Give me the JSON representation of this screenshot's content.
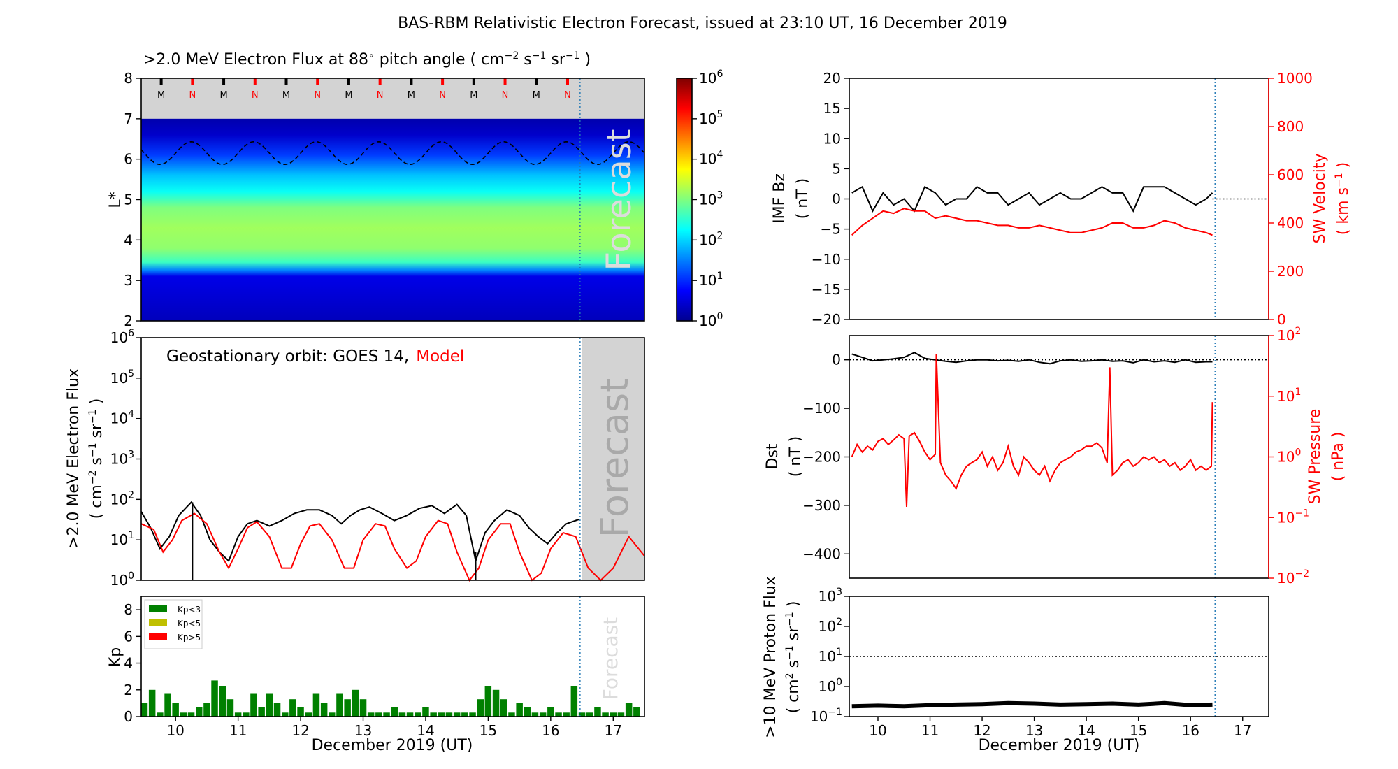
{
  "figure": {
    "title": "BAS-RBM Relativistic Electron Forecast, issued at 23:10 UT, 16 December 2019",
    "forecast_word": "Forecast",
    "colors": {
      "black": "#000000",
      "red": "#ff0000",
      "forecast_line": "#1f77b4",
      "shade": "#d3d3d3",
      "kp_low": "#008000",
      "kp_mid": "#bfbf00",
      "kp_high": "#ff0000"
    }
  },
  "chart_data": [
    {
      "id": "lstar",
      "type": "heatmap",
      "title": ">2.0 MeV Electron Flux at 88 pitch angle ( cm s sr )",
      "title_parts": {
        "main": ">2.0 MeV Electron Flux at 88",
        "deg": "∘",
        "open": " pitch angle ( cm",
        "e1": "−2",
        "s": " s",
        "e2": "−1",
        "sr": " sr",
        "e3": "−1",
        "close": " )"
      },
      "ylabel": "L*",
      "xlim": [
        9.45,
        17.5
      ],
      "ylim": [
        2,
        8
      ],
      "yticks": [
        "2",
        "3",
        "4",
        "5",
        "6",
        "7",
        "8"
      ],
      "forecast_x": 16.47,
      "colorbar": {
        "ticks": [
          "10",
          "10",
          "10",
          "10",
          "10",
          "10",
          "10"
        ],
        "exps": [
          "0",
          "1",
          "2",
          "3",
          "4",
          "5",
          "6"
        ],
        "range": [
          0,
          6
        ]
      },
      "profile": [
        {
          "L": 2.0,
          "logflux": 0.3
        },
        {
          "L": 3.1,
          "logflux": 0.6
        },
        {
          "L": 3.25,
          "logflux": 1.5
        },
        {
          "L": 3.45,
          "logflux": 2.6
        },
        {
          "L": 3.8,
          "logflux": 3.1
        },
        {
          "L": 4.3,
          "logflux": 3.2
        },
        {
          "L": 4.8,
          "logflux": 3.0
        },
        {
          "L": 5.2,
          "logflux": 2.3
        },
        {
          "L": 5.6,
          "logflux": 1.9
        },
        {
          "L": 6.1,
          "logflux": 1.1
        },
        {
          "L": 6.6,
          "logflux": 0.4
        },
        {
          "L": 7.0,
          "logflux": 0.2
        }
      ],
      "outer_boundary": 7.0,
      "dashed_line": {
        "mean": 6.15,
        "amplitude": 0.28,
        "period_days": 1.0,
        "phase": 10.25
      },
      "mlt_markers": [
        {
          "x": 9.77,
          "label": "M",
          "color": "#000000"
        },
        {
          "x": 10.27,
          "label": "N",
          "color": "#ff0000"
        },
        {
          "x": 10.77,
          "label": "M",
          "color": "#000000"
        },
        {
          "x": 11.27,
          "label": "N",
          "color": "#ff0000"
        },
        {
          "x": 11.77,
          "label": "M",
          "color": "#000000"
        },
        {
          "x": 12.27,
          "label": "N",
          "color": "#ff0000"
        },
        {
          "x": 12.77,
          "label": "M",
          "color": "#000000"
        },
        {
          "x": 13.27,
          "label": "N",
          "color": "#ff0000"
        },
        {
          "x": 13.77,
          "label": "M",
          "color": "#000000"
        },
        {
          "x": 14.27,
          "label": "N",
          "color": "#ff0000"
        },
        {
          "x": 14.77,
          "label": "M",
          "color": "#000000"
        },
        {
          "x": 15.27,
          "label": "N",
          "color": "#ff0000"
        },
        {
          "x": 15.77,
          "label": "M",
          "color": "#000000"
        },
        {
          "x": 16.27,
          "label": "N",
          "color": "#ff0000"
        }
      ]
    },
    {
      "id": "geo",
      "type": "line",
      "ylabel": ">2.0 MeV Electron Flux",
      "ylabel2": "( cm  s  sr  )",
      "ylabel2_parts": {
        "open": "( cm",
        "e1": "−2",
        "s": " s",
        "e2": "−1",
        "sr": " sr",
        "e3": "−1",
        "close": " )"
      },
      "annotation": {
        "prefix": "Geostationary orbit:   GOES 14,",
        "model": "Model"
      },
      "xlim": [
        9.45,
        17.5
      ],
      "ylim_log": [
        0,
        6
      ],
      "yticks": [
        "10",
        "10",
        "10",
        "10",
        "10",
        "10",
        "10"
      ],
      "yexps": [
        "0",
        "1",
        "2",
        "3",
        "4",
        "5",
        "6"
      ],
      "forecast_x": 16.47,
      "series": [
        {
          "name": "GOES 14",
          "color": "#000000",
          "x": [
            9.45,
            9.6,
            9.75,
            9.9,
            10.05,
            10.25,
            10.4,
            10.55,
            10.7,
            10.85,
            11.0,
            11.15,
            11.3,
            11.5,
            11.7,
            11.9,
            12.1,
            12.3,
            12.5,
            12.65,
            12.8,
            12.95,
            13.1,
            13.3,
            13.5,
            13.7,
            13.9,
            14.1,
            14.3,
            14.5,
            14.65,
            14.8,
            14.95,
            15.1,
            15.3,
            15.5,
            15.65,
            15.8,
            15.95,
            16.1,
            16.25,
            16.45
          ],
          "y": [
            50,
            20,
            6,
            12,
            40,
            85,
            40,
            10,
            5,
            3,
            12,
            25,
            30,
            22,
            30,
            45,
            55,
            55,
            40,
            25,
            40,
            55,
            65,
            45,
            30,
            40,
            60,
            70,
            45,
            75,
            40,
            3,
            15,
            30,
            55,
            40,
            20,
            12,
            8,
            15,
            25,
            32
          ]
        },
        {
          "name": "Model",
          "color": "#ff0000",
          "x": [
            9.45,
            9.65,
            9.8,
            9.95,
            10.1,
            10.3,
            10.5,
            10.7,
            10.85,
            11.0,
            11.15,
            11.3,
            11.5,
            11.7,
            11.85,
            12.0,
            12.15,
            12.3,
            12.5,
            12.7,
            12.85,
            13.0,
            13.2,
            13.35,
            13.5,
            13.7,
            13.85,
            14.0,
            14.2,
            14.35,
            14.5,
            14.7,
            14.85,
            15.0,
            15.2,
            15.35,
            15.5,
            15.7,
            15.85,
            16.0,
            16.2,
            16.4,
            16.6,
            16.8,
            17.0,
            17.25,
            17.5
          ],
          "y": [
            25,
            18,
            5,
            10,
            30,
            45,
            25,
            5,
            2,
            6,
            20,
            28,
            12,
            2,
            2,
            8,
            22,
            25,
            10,
            2,
            2,
            10,
            25,
            22,
            6,
            2,
            3,
            12,
            30,
            25,
            5,
            1,
            2,
            10,
            25,
            25,
            5,
            1,
            1.5,
            6,
            15,
            12,
            2,
            1,
            2,
            12,
            4
          ]
        }
      ]
    },
    {
      "id": "kp",
      "type": "bar",
      "ylabel": "Kp",
      "xlabel": "December 2019 (UT)",
      "xlim": [
        9.45,
        17.5
      ],
      "ylim": [
        0,
        9
      ],
      "yticks": [
        "0",
        "2",
        "4",
        "6",
        "8"
      ],
      "xticks": [
        "10",
        "11",
        "12",
        "13",
        "14",
        "15",
        "16",
        "17"
      ],
      "forecast_x": 16.47,
      "legend": [
        {
          "name": "Kp<3",
          "color": "#008000"
        },
        {
          "name": "Kp<5",
          "color": "#bfbf00"
        },
        {
          "name": "Kp>5",
          "color": "#ff0000"
        }
      ],
      "values": [
        1.0,
        2.0,
        0.3,
        1.7,
        1.0,
        0.3,
        0.3,
        0.7,
        1.0,
        2.7,
        2.3,
        1.3,
        0.3,
        0.3,
        1.7,
        0.7,
        1.7,
        1.0,
        0.3,
        1.3,
        0.7,
        0.3,
        1.7,
        1.0,
        0.3,
        1.7,
        1.3,
        2.0,
        1.3,
        0.3,
        0.3,
        0.3,
        0.7,
        0.3,
        0.3,
        0.3,
        0.7,
        0.3,
        0.3,
        0.3,
        0.3,
        0.3,
        0.3,
        1.3,
        2.3,
        2.0,
        1.3,
        0.3,
        1.0,
        0.7,
        0.3,
        0.3,
        0.7,
        0.3,
        0.3,
        2.3,
        0.3,
        0.3,
        0.7,
        0.3,
        0.3,
        0.3,
        1.0,
        0.7
      ],
      "start_day": 9.5,
      "step": 0.125
    },
    {
      "id": "imf",
      "type": "line",
      "ylabel": "IMF Bz",
      "ylabel2": "( nT )",
      "ylabel_right": "SW Velocity",
      "ylabel_right2": "( km s   )",
      "ylabel_right2_parts": {
        "open": "( km s",
        "e": "−1",
        "close": " )"
      },
      "xlim": [
        9.45,
        17.5
      ],
      "ylim": [
        -20,
        20
      ],
      "ylim_right": [
        0,
        1000
      ],
      "yticks": [
        "20",
        "15",
        "10",
        "5",
        "0",
        "−5",
        "−10",
        "−15",
        "−20"
      ],
      "yticks_right": [
        "1000",
        "800",
        "600",
        "400",
        "200",
        "0"
      ],
      "forecast_x": 16.47,
      "series": [
        {
          "name": "IMF Bz",
          "color": "#000000",
          "x": [
            9.5,
            9.7,
            9.9,
            10.1,
            10.3,
            10.5,
            10.7,
            10.9,
            11.1,
            11.3,
            11.5,
            11.7,
            11.9,
            12.1,
            12.3,
            12.5,
            12.7,
            12.9,
            13.1,
            13.3,
            13.5,
            13.7,
            13.9,
            14.1,
            14.3,
            14.5,
            14.7,
            14.9,
            15.1,
            15.3,
            15.5,
            15.7,
            15.9,
            16.1,
            16.3,
            16.42
          ],
          "y": [
            1,
            2,
            -2,
            1,
            -1,
            0,
            -2,
            2,
            1,
            -1,
            0,
            0,
            2,
            1,
            1,
            -1,
            0,
            1,
            -1,
            0,
            1,
            0,
            0,
            1,
            2,
            1,
            1,
            -2,
            2,
            2,
            2,
            1,
            0,
            -1,
            0,
            1
          ]
        },
        {
          "name": "SW Velocity",
          "color": "#ff0000",
          "x": [
            9.5,
            9.7,
            9.9,
            10.1,
            10.3,
            10.5,
            10.7,
            10.9,
            11.1,
            11.3,
            11.5,
            11.7,
            11.9,
            12.1,
            12.3,
            12.5,
            12.7,
            12.9,
            13.1,
            13.3,
            13.5,
            13.7,
            13.9,
            14.1,
            14.3,
            14.5,
            14.7,
            14.9,
            15.1,
            15.3,
            15.5,
            15.7,
            15.9,
            16.1,
            16.3,
            16.42
          ],
          "y": [
            350,
            390,
            420,
            450,
            440,
            460,
            450,
            450,
            420,
            430,
            420,
            410,
            410,
            400,
            390,
            390,
            380,
            380,
            390,
            380,
            370,
            360,
            360,
            370,
            380,
            400,
            400,
            380,
            380,
            390,
            410,
            400,
            380,
            370,
            360,
            350
          ]
        }
      ]
    },
    {
      "id": "dst",
      "type": "line",
      "ylabel": "Dst",
      "ylabel2": "( nT )",
      "ylabel_right": "SW Pressure",
      "ylabel_right2": "( nPa )",
      "xlim": [
        9.45,
        17.5
      ],
      "ylim": [
        -450,
        50
      ],
      "ylim_right_log": [
        -2,
        2
      ],
      "yticks": [
        "0",
        "−100",
        "−200",
        "−300",
        "−400"
      ],
      "yticks_right": [
        "10",
        "10",
        "10",
        "10",
        "10"
      ],
      "yexps_right": [
        "2",
        "1",
        "0",
        "−1",
        "−2"
      ],
      "forecast_x": 16.47,
      "series": [
        {
          "name": "Dst",
          "color": "#000000",
          "x": [
            9.5,
            9.7,
            9.9,
            10.1,
            10.3,
            10.5,
            10.7,
            10.9,
            11.1,
            11.3,
            11.5,
            11.7,
            11.9,
            12.1,
            12.3,
            12.5,
            12.7,
            12.9,
            13.1,
            13.3,
            13.5,
            13.7,
            13.9,
            14.1,
            14.3,
            14.5,
            14.7,
            14.9,
            15.1,
            15.3,
            15.5,
            15.7,
            15.9,
            16.1,
            16.3,
            16.42
          ],
          "y": [
            12,
            5,
            -2,
            0,
            2,
            5,
            15,
            3,
            0,
            -3,
            -5,
            -2,
            0,
            0,
            -2,
            -1,
            -3,
            0,
            -5,
            -8,
            -2,
            0,
            -3,
            -2,
            0,
            -3,
            -2,
            -6,
            0,
            -4,
            -2,
            -5,
            0,
            -5,
            -4,
            -4
          ]
        },
        {
          "name": "SW Pressure",
          "color": "#ff0000",
          "x": [
            9.5,
            9.6,
            9.7,
            9.8,
            9.9,
            10.0,
            10.1,
            10.2,
            10.3,
            10.4,
            10.5,
            10.55,
            10.6,
            10.7,
            10.8,
            10.9,
            11.0,
            11.1,
            11.12,
            11.2,
            11.3,
            11.4,
            11.5,
            11.6,
            11.7,
            11.8,
            11.9,
            12.0,
            12.1,
            12.2,
            12.3,
            12.4,
            12.5,
            12.6,
            12.7,
            12.8,
            12.9,
            13.0,
            13.1,
            13.2,
            13.3,
            13.4,
            13.5,
            13.6,
            13.7,
            13.8,
            13.9,
            14.0,
            14.1,
            14.2,
            14.3,
            14.4,
            14.45,
            14.5,
            14.6,
            14.7,
            14.8,
            14.9,
            15.0,
            15.1,
            15.2,
            15.3,
            15.4,
            15.5,
            15.6,
            15.7,
            15.8,
            15.9,
            16.0,
            16.1,
            16.2,
            16.3,
            16.4,
            16.42
          ],
          "y": [
            1.0,
            1.6,
            1.2,
            1.5,
            1.3,
            1.8,
            2.0,
            1.6,
            1.9,
            2.3,
            2.0,
            0.15,
            2.2,
            2.5,
            1.8,
            1.2,
            0.9,
            1.1,
            50,
            0.8,
            0.5,
            0.4,
            0.3,
            0.5,
            0.7,
            0.8,
            0.9,
            1.2,
            0.7,
            1.0,
            0.6,
            0.8,
            1.5,
            0.7,
            0.5,
            1.0,
            0.8,
            0.6,
            0.5,
            0.7,
            0.4,
            0.6,
            0.8,
            0.9,
            1.0,
            1.2,
            1.3,
            1.5,
            1.5,
            1.7,
            1.4,
            0.8,
            30,
            0.5,
            0.6,
            0.8,
            0.9,
            0.7,
            0.8,
            1.0,
            0.9,
            1.0,
            0.8,
            0.9,
            0.7,
            0.8,
            0.6,
            0.7,
            0.9,
            0.6,
            0.7,
            0.6,
            0.7,
            8
          ]
        }
      ]
    },
    {
      "id": "proton",
      "type": "line",
      "ylabel": ">10 MeV Proton Flux",
      "ylabel2": "( cm  s  sr  )",
      "ylabel2_parts": {
        "open": "( cm",
        "e1": "2",
        "s": " s",
        "e2": "−1",
        "sr": " sr",
        "e3": "−1",
        "close": " )"
      },
      "xlabel": "December 2019 (UT)",
      "xlim": [
        9.45,
        17.5
      ],
      "ylim_log": [
        -1,
        3
      ],
      "yticks": [
        "10",
        "10",
        "10",
        "10",
        "10"
      ],
      "yexps": [
        "−1",
        "0",
        "1",
        "2",
        "3"
      ],
      "xticks": [
        "10",
        "11",
        "12",
        "13",
        "14",
        "15",
        "16",
        "17"
      ],
      "threshold": 10,
      "forecast_x": 16.47,
      "series": [
        {
          "name": ">10 MeV Proton Flux",
          "color": "#000000",
          "x": [
            9.5,
            10.0,
            10.5,
            11.0,
            11.5,
            12.0,
            12.5,
            13.0,
            13.5,
            14.0,
            14.5,
            15.0,
            15.5,
            16.0,
            16.42
          ],
          "y": [
            0.22,
            0.23,
            0.22,
            0.24,
            0.25,
            0.26,
            0.28,
            0.27,
            0.25,
            0.26,
            0.27,
            0.25,
            0.28,
            0.24,
            0.25
          ]
        }
      ]
    }
  ]
}
